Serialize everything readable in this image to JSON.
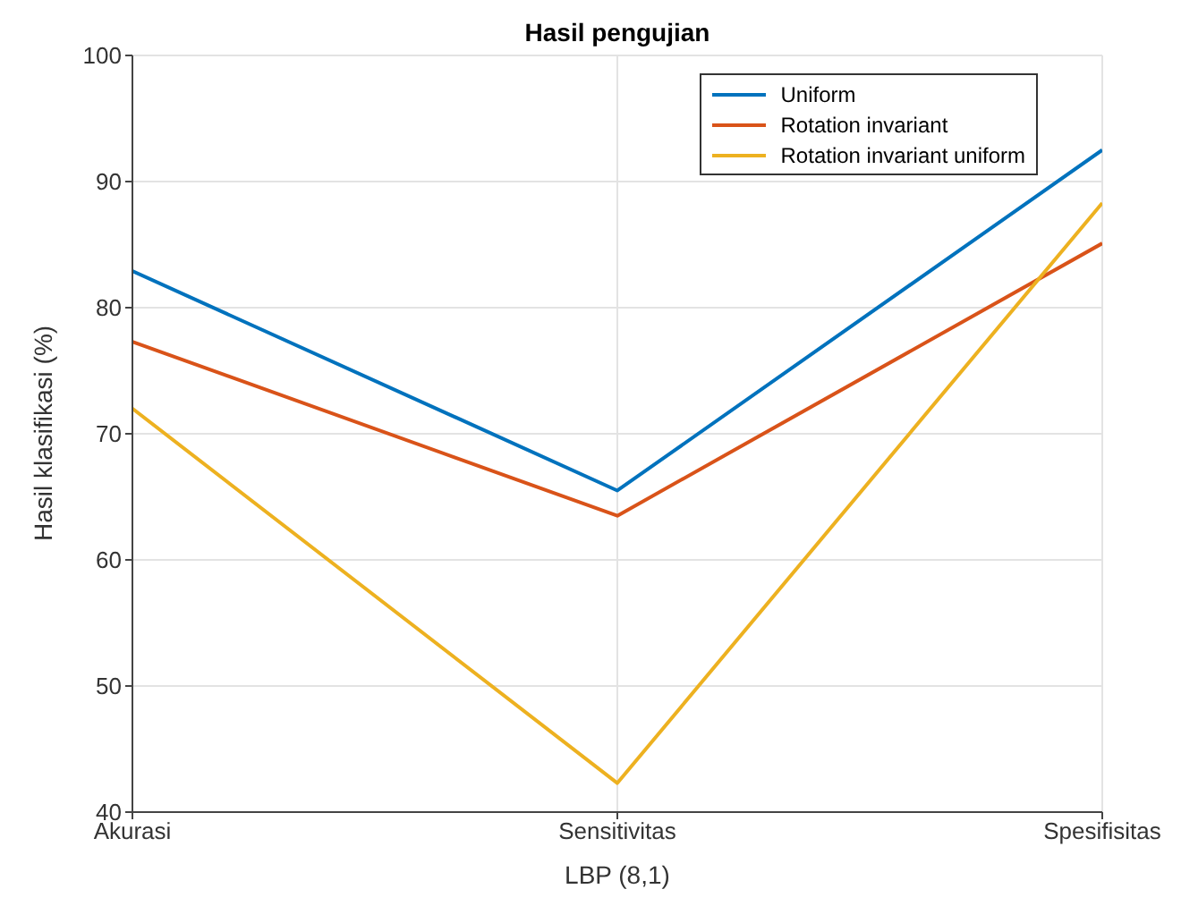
{
  "chart_data": {
    "type": "line",
    "title": "Hasil pengujian",
    "xlabel": "LBP (8,1)",
    "ylabel": "Hasil klasifikasi (%)",
    "categories": [
      "Akurasi",
      "Sensitivitas",
      "Spesifisitas"
    ],
    "series": [
      {
        "name": "Uniform",
        "color": "#0072bd",
        "values": [
          82.9,
          65.5,
          92.5
        ]
      },
      {
        "name": "Rotation invariant",
        "color": "#d95319",
        "values": [
          77.3,
          63.5,
          85.1
        ]
      },
      {
        "name": "Rotation invariant uniform",
        "color": "#edb120",
        "values": [
          72.0,
          42.3,
          88.3
        ]
      }
    ],
    "ylim": [
      40,
      100
    ],
    "yticks": [
      40,
      50,
      60,
      70,
      80,
      90,
      100
    ],
    "grid": true,
    "legend": "top right",
    "marker": "none",
    "line_style": "solid"
  }
}
